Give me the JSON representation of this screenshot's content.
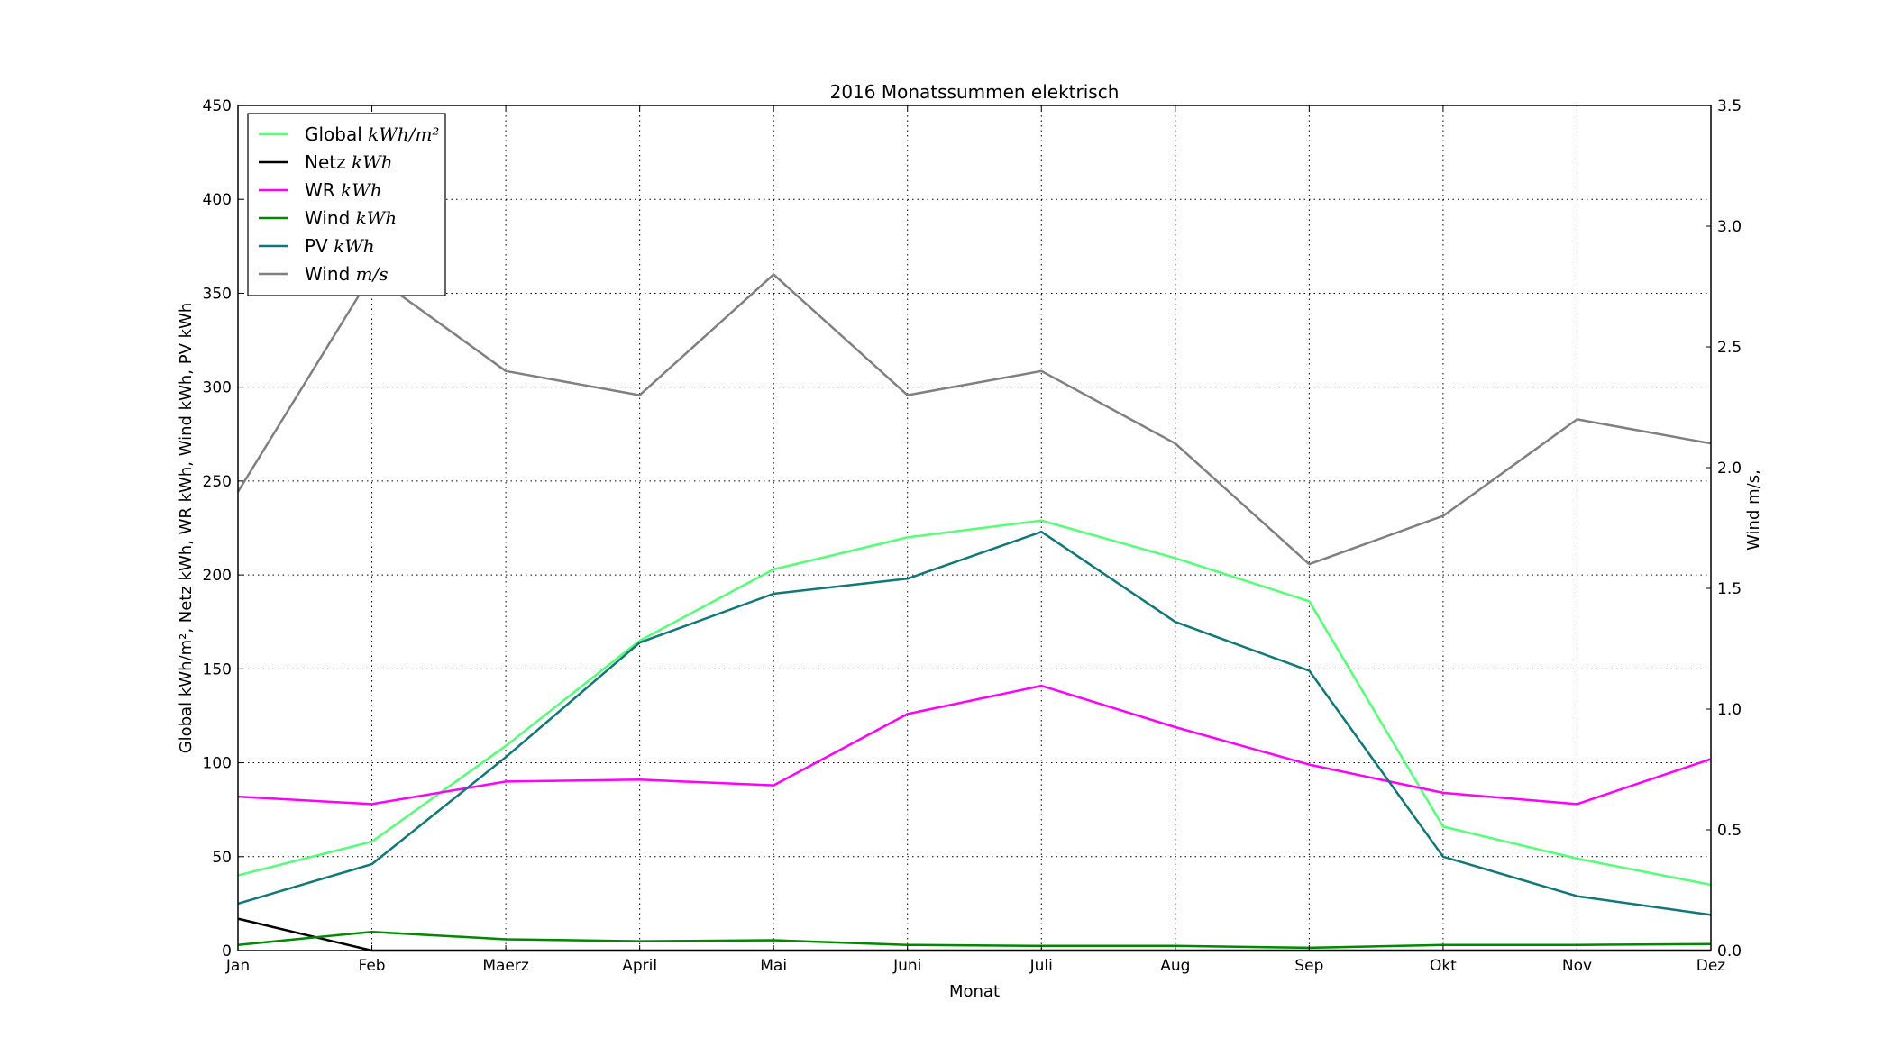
{
  "chart_data": {
    "type": "line",
    "title": "2016 Monatssummen elektrisch",
    "xlabel": "Monat",
    "ylabel_left": "Global kWh/m², Netz kWh, WR kWh, Wind kWh, PV kWh",
    "ylabel_right": "Wind m/s,",
    "categories": [
      "Jan",
      "Feb",
      "Maerz",
      "April",
      "Mai",
      "Juni",
      "Juli",
      "Aug",
      "Sep",
      "Okt",
      "Nov",
      "Dez"
    ],
    "ylim_left": [
      0,
      450
    ],
    "yticks_left": [
      "0",
      "50",
      "100",
      "150",
      "200",
      "250",
      "300",
      "350",
      "400",
      "450"
    ],
    "ylim_right": [
      0,
      3.5
    ],
    "yticks_right": [
      "0.0",
      "0.5",
      "1.0",
      "1.5",
      "2.0",
      "2.5",
      "3.0",
      "3.5"
    ],
    "grid": true,
    "legend_position": "top-left",
    "series": [
      {
        "name": "Global",
        "unit": "kWh/m²",
        "axis": "left",
        "color": "#55ff77",
        "values": [
          40,
          58,
          109,
          165,
          203,
          220,
          229,
          209,
          186,
          66,
          49,
          35
        ]
      },
      {
        "name": "Netz",
        "unit": "kWh",
        "axis": "left",
        "color": "#000000",
        "values": [
          17,
          0,
          0,
          0,
          0,
          0,
          0,
          0,
          0,
          0,
          0,
          0
        ]
      },
      {
        "name": "WR",
        "unit": "kWh",
        "axis": "left",
        "color": "#ff00ff",
        "values": [
          82,
          78,
          90,
          91,
          88,
          126,
          141,
          119,
          99,
          84,
          78,
          102
        ]
      },
      {
        "name": "Wind",
        "unit": "kWh",
        "axis": "left",
        "color": "#008800",
        "values": [
          3,
          10,
          6,
          5,
          5.5,
          3,
          2.5,
          2.5,
          1.5,
          3,
          3,
          3.5
        ]
      },
      {
        "name": "PV",
        "unit": "kWh",
        "axis": "left",
        "color": "#117777",
        "values": [
          25,
          46,
          103,
          164,
          190,
          198,
          223,
          175,
          149,
          50,
          29,
          19
        ]
      },
      {
        "name": "Wind",
        "unit": "m/s",
        "axis": "right",
        "color": "#808080",
        "values": [
          1.9,
          2.8,
          2.4,
          2.3,
          2.8,
          2.3,
          2.4,
          2.1,
          1.6,
          1.8,
          2.2,
          2.1
        ]
      }
    ]
  }
}
